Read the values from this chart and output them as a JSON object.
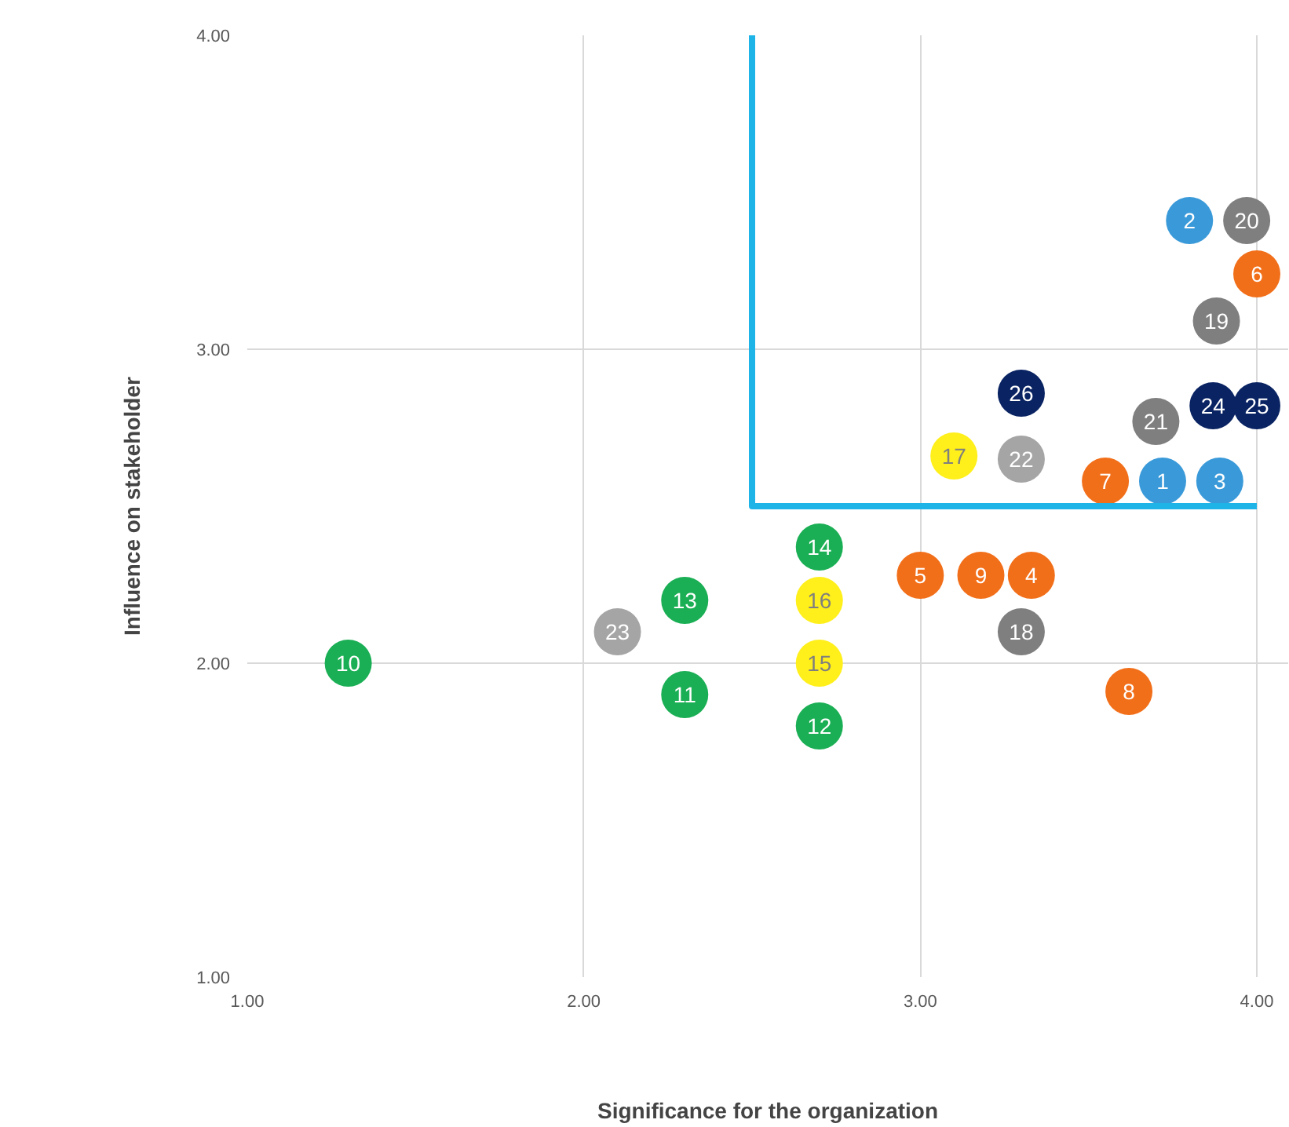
{
  "chart_data": {
    "type": "scatter",
    "xlabel": "Significance for the organization",
    "ylabel": "Influence on stakeholder",
    "xlim": [
      1,
      4
    ],
    "ylim": [
      1,
      4
    ],
    "xticks": [
      {
        "value": 1,
        "label": "1.00"
      },
      {
        "value": 2,
        "label": "2.00"
      },
      {
        "value": 3,
        "label": "3.00"
      },
      {
        "value": 4,
        "label": "4.00"
      }
    ],
    "yticks": [
      {
        "value": 1,
        "label": "1.00"
      },
      {
        "value": 2,
        "label": "2.00"
      },
      {
        "value": 3,
        "label": "3.00"
      },
      {
        "value": 4,
        "label": "4.00"
      }
    ],
    "grid": true,
    "marker": "circle",
    "series": [
      {
        "color": "#1aaf54",
        "x": [
          1.3,
          2.3,
          2.7,
          2.3,
          2.7
        ],
        "values": [
          2.0,
          1.9,
          1.8,
          2.2,
          2.37
        ]
      },
      {
        "color": "#ffef1a",
        "x": [
          2.7,
          2.7,
          3.1
        ],
        "values": [
          2.0,
          2.2,
          2.66
        ]
      },
      {
        "color": "#a5a5a5",
        "x": [
          3.3,
          2.1
        ],
        "values": [
          2.65,
          2.1
        ]
      },
      {
        "color": "#7f7f7f",
        "x": [
          3.3,
          3.88,
          3.97,
          3.7
        ],
        "values": [
          2.1,
          3.09,
          3.41,
          2.77
        ]
      },
      {
        "color": "#f26f1a",
        "x": [
          3.33,
          3.0,
          4.0,
          3.55,
          3.62,
          3.18
        ],
        "values": [
          2.28,
          2.28,
          3.24,
          2.58,
          1.91,
          2.28
        ]
      },
      {
        "color": "#3a9ad9",
        "x": [
          3.72,
          3.8,
          3.89
        ],
        "values": [
          2.58,
          3.41,
          2.58
        ]
      },
      {
        "color": "#0a2463",
        "x": [
          3.87,
          4.0,
          3.3
        ],
        "values": [
          2.82,
          2.82,
          2.86
        ]
      },
      {
        "type": "line",
        "marker": "none",
        "color": "#1fb4e8",
        "x": [
          2.5,
          2.5,
          4.0
        ],
        "values": [
          4.0,
          2.5,
          2.5
        ]
      }
    ],
    "annotations": [
      {
        "text": "1",
        "x": 3.72,
        "y": 2.58
      },
      {
        "text": "2",
        "x": 3.8,
        "y": 3.41
      },
      {
        "text": "3",
        "x": 3.89,
        "y": 2.58
      },
      {
        "text": "4",
        "x": 3.33,
        "y": 2.28
      },
      {
        "text": "5",
        "x": 3.0,
        "y": 2.28
      },
      {
        "text": "6",
        "x": 4.0,
        "y": 3.24
      },
      {
        "text": "7",
        "x": 3.55,
        "y": 2.58
      },
      {
        "text": "8",
        "x": 3.62,
        "y": 1.91
      },
      {
        "text": "9",
        "x": 3.18,
        "y": 2.28
      },
      {
        "text": "10",
        "x": 1.3,
        "y": 2.0
      },
      {
        "text": "11",
        "x": 2.3,
        "y": 1.9
      },
      {
        "text": "12",
        "x": 2.7,
        "y": 1.8
      },
      {
        "text": "13",
        "x": 2.3,
        "y": 2.2
      },
      {
        "text": "14",
        "x": 2.7,
        "y": 2.37
      },
      {
        "text": "15",
        "x": 2.7,
        "y": 2.0
      },
      {
        "text": "16",
        "x": 2.7,
        "y": 2.2
      },
      {
        "text": "17",
        "x": 3.1,
        "y": 2.66
      },
      {
        "text": "18",
        "x": 3.3,
        "y": 2.1
      },
      {
        "text": "19",
        "x": 3.88,
        "y": 3.09
      },
      {
        "text": "20",
        "x": 3.97,
        "y": 3.41
      },
      {
        "text": "21",
        "x": 3.7,
        "y": 2.77
      },
      {
        "text": "22",
        "x": 3.3,
        "y": 2.65
      },
      {
        "text": "23",
        "x": 2.1,
        "y": 2.1
      },
      {
        "text": "24",
        "x": 3.87,
        "y": 2.82
      },
      {
        "text": "25",
        "x": 4.0,
        "y": 2.82
      },
      {
        "text": "26",
        "x": 3.3,
        "y": 2.86
      }
    ]
  }
}
